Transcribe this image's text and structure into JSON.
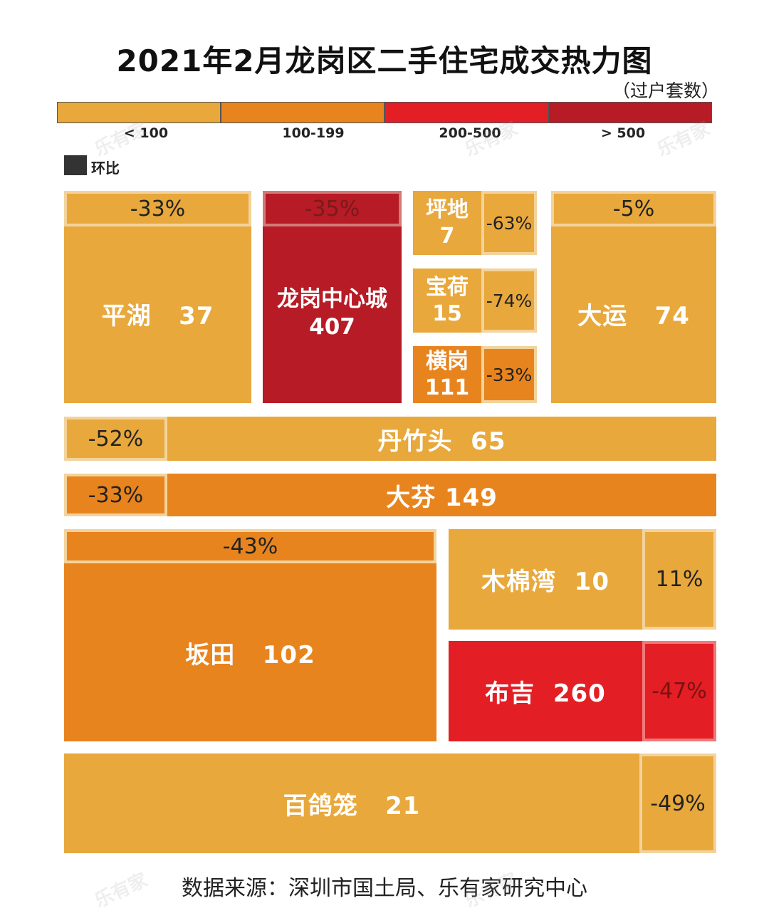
{
  "title": "2021年2月龙岗区二手住宅成交热力图",
  "unit": "（过户套数）",
  "colors": {
    "lt100": "#e8a83c",
    "r100_199": "#e8841e",
    "r200_500": "#e31e24",
    "gt500": "#b71b25",
    "pct_border": "#f3d39b",
    "background": "#ffffff"
  },
  "legend": [
    {
      "label": "< 100",
      "color": "#e8a83c"
    },
    {
      "label": "100-199",
      "color": "#e8841e"
    },
    {
      "label": "200-500",
      "color": "#e31e24"
    },
    {
      "label": "> 500",
      "color": "#b71b25"
    }
  ],
  "mom_label": "环比",
  "source": "数据来源：深圳市国土局、乐有家研究中心",
  "watermark": "乐有家",
  "chart_data": {
    "type": "heatmap",
    "title": "2021年2月龙岗区二手住宅成交热力图",
    "unit": "过户套数",
    "secondary_metric": "环比",
    "cells": [
      {
        "name": "平湖",
        "value": 37,
        "mom": "-33%"
      },
      {
        "name": "龙岗中心城",
        "value": 407,
        "mom": "-35%"
      },
      {
        "name": "坪地",
        "value": 7,
        "mom": "-63%"
      },
      {
        "name": "宝荷",
        "value": 15,
        "mom": "-74%"
      },
      {
        "name": "横岗",
        "value": 111,
        "mom": "-33%"
      },
      {
        "name": "大运",
        "value": 74,
        "mom": "-5%"
      },
      {
        "name": "丹竹头",
        "value": 65,
        "mom": "-52%"
      },
      {
        "name": "大芬",
        "value": 149,
        "mom": "-33%"
      },
      {
        "name": "坂田",
        "value": 102,
        "mom": "-43%"
      },
      {
        "name": "木棉湾",
        "value": 10,
        "mom": "11%"
      },
      {
        "name": "布吉",
        "value": 260,
        "mom": "-47%"
      },
      {
        "name": "百鸽笼",
        "value": 21,
        "mom": "-49%"
      }
    ]
  }
}
